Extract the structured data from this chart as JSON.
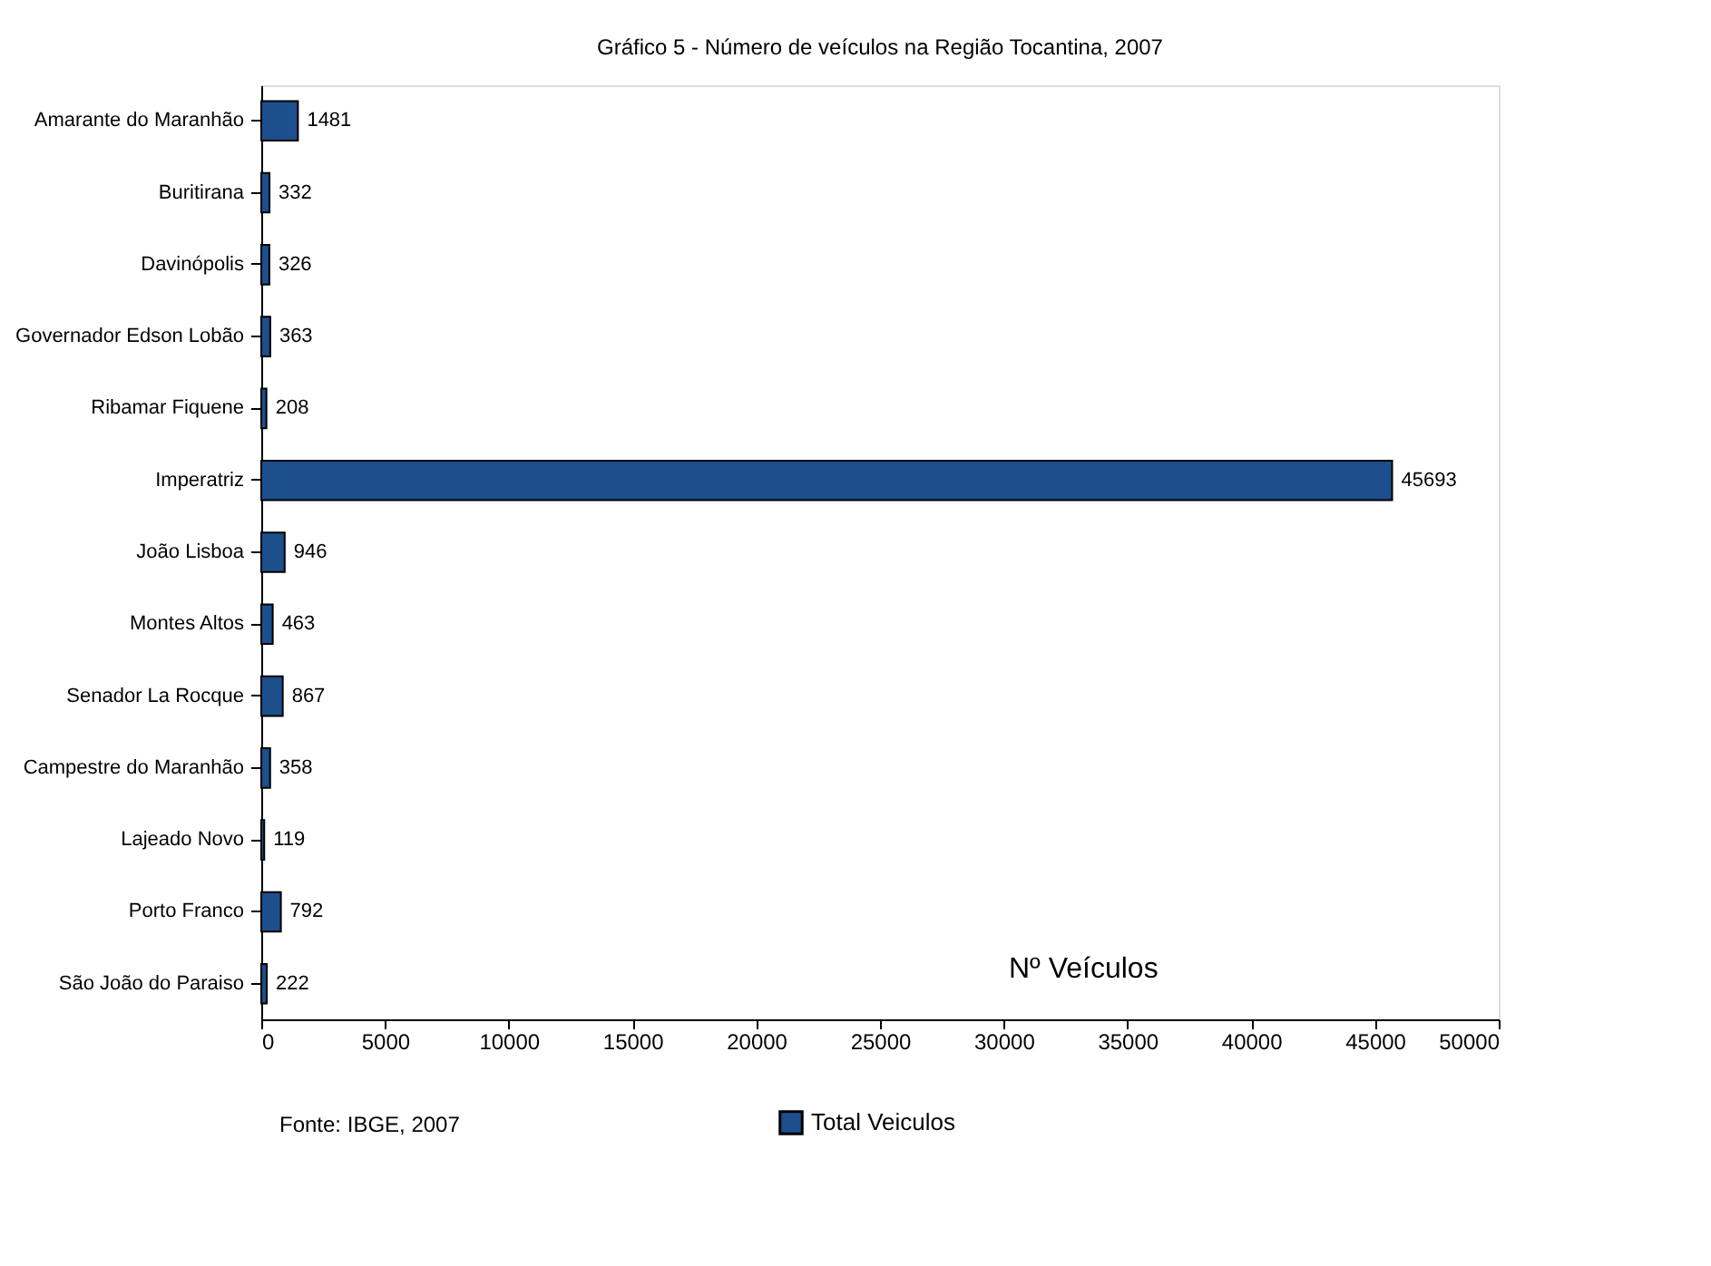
{
  "chart_data": {
    "type": "bar",
    "orientation": "horizontal",
    "title": "Gráfico 5 - Número de veículos na Região Tocantina, 2007",
    "categories": [
      "Amarante do Maranhão",
      "Buritirana",
      "Davinópolis",
      "Governador Edson Lobão",
      "Ribamar Fiquene",
      "Imperatriz",
      "João Lisboa",
      "Montes Altos",
      "Senador La Rocque",
      "Campestre do Maranhão",
      "Lajeado Novo",
      "Porto Franco",
      "São João do Paraiso"
    ],
    "series": [
      {
        "name": "Total Veiculos",
        "color": "#1c4f8c",
        "values": [
          1481,
          332,
          326,
          363,
          208,
          45693,
          946,
          463,
          867,
          358,
          119,
          792,
          222
        ]
      }
    ],
    "xlim": [
      0,
      50000
    ],
    "xticks": [
      0,
      5000,
      10000,
      15000,
      20000,
      25000,
      30000,
      35000,
      40000,
      45000,
      50000
    ],
    "data_labels": true,
    "legend": "bottom",
    "grid": false,
    "annotations": [
      "Nº Veículos",
      "Fonte: IBGE, 2007"
    ]
  }
}
